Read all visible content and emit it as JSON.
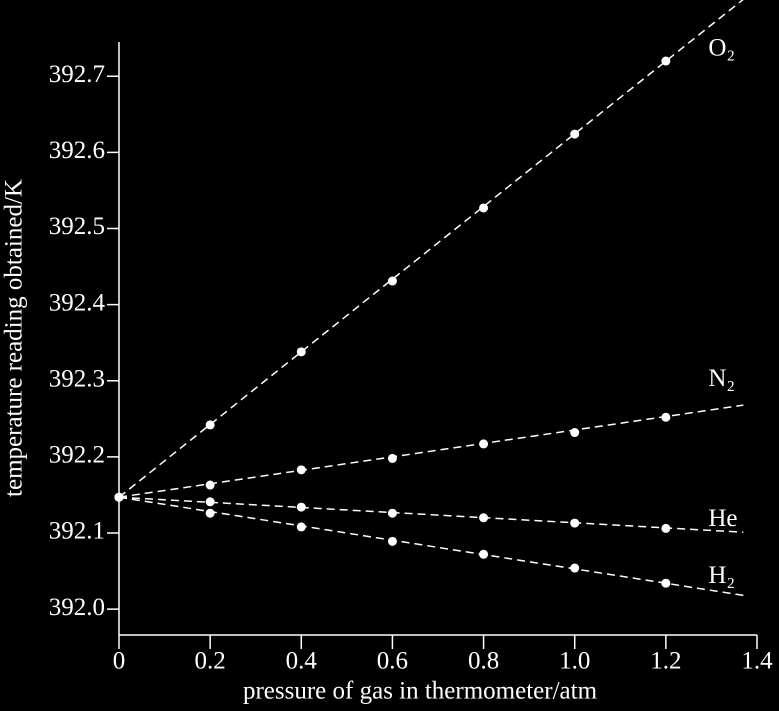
{
  "chart_data": {
    "type": "scatter",
    "x_label": "pressure of gas in thermometer/atm",
    "y_label": "temperature reading obtained/K",
    "x": [
      0,
      0.2,
      0.4,
      0.6,
      0.8,
      1.0,
      1.2
    ],
    "fit_x": [
      0,
      1.37
    ],
    "series": [
      {
        "name": "O₂",
        "color": "#ffffff",
        "values": [
          392.147,
          392.242,
          392.338,
          392.431,
          392.527,
          392.624,
          392.72
        ],
        "fit": [
          392.147,
          392.801
        ]
      },
      {
        "name": "N₂",
        "color": "#ffffff",
        "values": [
          392.147,
          392.163,
          392.183,
          392.198,
          392.217,
          392.232,
          392.252
        ],
        "fit": [
          392.147,
          392.268
        ]
      },
      {
        "name": "He",
        "color": "#ffffff",
        "values": [
          392.147,
          392.141,
          392.134,
          392.126,
          392.12,
          392.113,
          392.106
        ],
        "fit": [
          392.147,
          392.101
        ]
      },
      {
        "name": "H₂",
        "color": "#ffffff",
        "values": [
          392.147,
          392.126,
          392.108,
          392.089,
          392.072,
          392.054,
          392.034
        ],
        "fit": [
          392.147,
          392.018
        ]
      }
    ],
    "xlim": [
      0,
      1.4
    ],
    "ylim": [
      391.966,
      392.745
    ],
    "xticks": [
      0,
      0.2,
      0.4,
      0.6,
      0.8,
      {
        "value": 1,
        "label": "1.0"
      },
      1.2,
      1.4
    ],
    "yticks": [
      {
        "value": 392,
        "label": "392.0"
      },
      392.1,
      392.2,
      392.3,
      392.4,
      392.5,
      392.6,
      392.7
    ]
  }
}
